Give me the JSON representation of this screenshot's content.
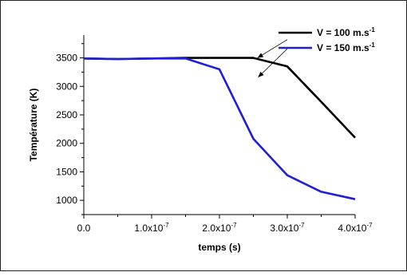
{
  "chart_data": {
    "type": "line",
    "xlabel": "temps (s)",
    "ylabel": "Température (K)",
    "xlim": [
      0,
      4e-07
    ],
    "ylim": [
      750,
      3900
    ],
    "x_ticks": [
      {
        "value": 0,
        "mantissa": "0.0",
        "exponent": ""
      },
      {
        "value": 1e-07,
        "mantissa": "1.0x10",
        "exponent": "-7"
      },
      {
        "value": 2e-07,
        "mantissa": "2.0x10",
        "exponent": "-7"
      },
      {
        "value": 3e-07,
        "mantissa": "3.0x10",
        "exponent": "-7"
      },
      {
        "value": 4e-07,
        "mantissa": "4.0x10",
        "exponent": "-7"
      }
    ],
    "y_ticks": [
      1000,
      1500,
      2000,
      2500,
      3000,
      3500
    ],
    "legend_position": "top-right",
    "series": [
      {
        "name_main": "V = 100 m.s",
        "name_sup": "-1",
        "color": "#000000",
        "x": [
          0,
          5e-08,
          1e-07,
          1.5e-07,
          2e-07,
          2.5e-07,
          3e-07,
          3.5e-07,
          4e-07
        ],
        "y": [
          3490,
          3480,
          3490,
          3500,
          3500,
          3500,
          3350,
          2730,
          2100
        ]
      },
      {
        "name_main": "V = 150 m.s",
        "name_sup": "-1",
        "color": "#1f1fd6",
        "x": [
          0,
          5e-08,
          1e-07,
          1.5e-07,
          2e-07,
          2.5e-07,
          3e-07,
          3.5e-07,
          4e-07
        ],
        "y": [
          3490,
          3480,
          3490,
          3490,
          3300,
          2080,
          1440,
          1150,
          1020
        ]
      }
    ],
    "annotations": [
      {
        "type": "arrow",
        "from": [
          3e-07,
          3820
        ],
        "to": [
          2.56e-07,
          3500
        ]
      },
      {
        "type": "arrow",
        "from": [
          3e-07,
          3660
        ],
        "to": [
          2.57e-07,
          3160
        ]
      }
    ]
  }
}
